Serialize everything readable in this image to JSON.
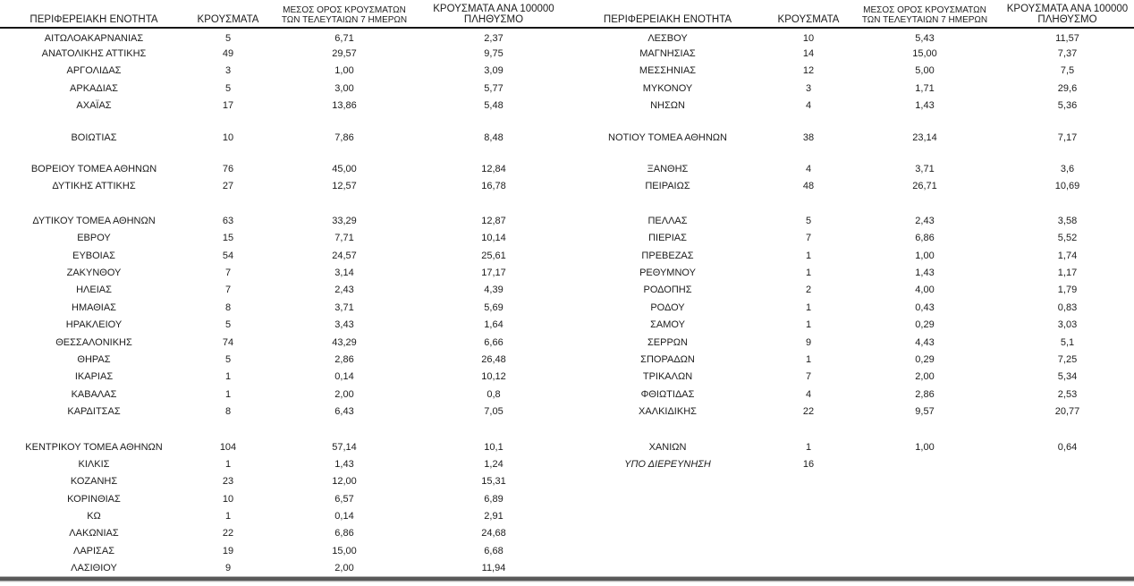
{
  "page": {
    "background_color": "#ffffff",
    "text_color": "#1c1c1c",
    "header_rule_color": "#161616",
    "bottom_bar_color": "#595959"
  },
  "table": {
    "column_headers": {
      "region": "ΠΕΡΙΦΕΡΕΙΑΚΗ ΕΝΟΤΗΤΑ",
      "cases": "ΚΡΟΥΣΜΑΤΑ",
      "avg_7day_line1": "ΜΕΣΟΣ ΟΡΟΣ ΚΡΟΥΣΜΑΤΩΝ",
      "avg_7day_line2": "ΤΩΝ ΤΕΛΕΥΤΑΙΩΝ 7 ΗΜΕΡΩΝ",
      "per_100k_line1": "ΚΡΟΥΣΜΑΤΑ ΑΝΑ 100000",
      "per_100k_line2": "ΠΛΗΘΥΣΜΟ"
    },
    "rows": [
      {
        "left": [
          "ΑΙΤΩΛΟΑΚΑΡΝΑΝΙΑΣ",
          "5",
          "6,71",
          "2,37"
        ],
        "right": [
          "ΛΕΣΒΟΥ",
          "10",
          "5,43",
          "11,57"
        ]
      },
      {
        "left": [
          "ΑΝΑΤΟΛΙΚΗΣ ΑΤΤΙΚΗΣ",
          "49",
          "29,57",
          "9,75"
        ],
        "right": [
          "ΜΑΓΝΗΣΙΑΣ",
          "14",
          "15,00",
          "7,37"
        ]
      },
      {
        "left": [
          "ΑΡΓΟΛΙΔΑΣ",
          "3",
          "1,00",
          "3,09"
        ],
        "right": [
          "ΜΕΣΣΗΝΙΑΣ",
          "12",
          "5,00",
          "7,5"
        ]
      },
      {
        "left": [
          "ΑΡΚΑΔΙΑΣ",
          "5",
          "3,00",
          "5,77"
        ],
        "right": [
          "ΜΥΚΟΝΟΥ",
          "3",
          "1,71",
          "29,6"
        ]
      },
      {
        "left": [
          "ΑΧΑΪΑΣ",
          "17",
          "13,86",
          "5,48"
        ],
        "right": [
          "ΝΗΣΩΝ",
          "4",
          "1,43",
          "5,36"
        ]
      },
      {
        "spacer": true,
        "height": 16
      },
      {
        "left": [
          "ΒΟΙΩΤΙΑΣ",
          "10",
          "7,86",
          "8,48"
        ],
        "right": [
          "ΝΟΤΙΟΥ ΤΟΜΕΑ ΑΘΗΝΩΝ",
          "38",
          "23,14",
          "7,17"
        ]
      },
      {
        "spacer": true,
        "height": 16
      },
      {
        "left": [
          "ΒΟΡΕΙΟΥ ΤΟΜΕΑ ΑΘΗΝΩΝ",
          "76",
          "45,00",
          "12,84"
        ],
        "right": [
          "ΞΑΝΘΗΣ",
          "4",
          "3,71",
          "3,6"
        ]
      },
      {
        "left": [
          "ΔΥΤΙΚΗΣ ΑΤΤΙΚΗΣ",
          "27",
          "12,57",
          "16,78"
        ],
        "right": [
          "ΠΕΙΡΑΙΩΣ",
          "48",
          "26,71",
          "10,69"
        ]
      },
      {
        "spacer": true,
        "height": 19
      },
      {
        "left": [
          "ΔΥΤΙΚΟΥ ΤΟΜΕΑ ΑΘΗΝΩΝ",
          "63",
          "33,29",
          "12,87"
        ],
        "right": [
          "ΠΕΛΛΑΣ",
          "5",
          "2,43",
          "3,58"
        ]
      },
      {
        "left": [
          "ΕΒΡΟΥ",
          "15",
          "7,71",
          "10,14"
        ],
        "right": [
          "ΠΙΕΡΙΑΣ",
          "7",
          "6,86",
          "5,52"
        ]
      },
      {
        "left": [
          "ΕΥΒΟΙΑΣ",
          "54",
          "24,57",
          "25,61"
        ],
        "right": [
          "ΠΡΕΒΕΖΑΣ",
          "1",
          "1,00",
          "1,74"
        ]
      },
      {
        "left": [
          "ΖΑΚΥΝΘΟΥ",
          "7",
          "3,14",
          "17,17"
        ],
        "right": [
          "ΡΕΘΥΜΝΟΥ",
          "1",
          "1,43",
          "1,17"
        ]
      },
      {
        "left": [
          "ΗΛΕΙΑΣ",
          "7",
          "2,43",
          "4,39"
        ],
        "right": [
          "ΡΟΔΟΠΗΣ",
          "2",
          "4,00",
          "1,79"
        ]
      },
      {
        "left": [
          "ΗΜΑΘΙΑΣ",
          "8",
          "3,71",
          "5,69"
        ],
        "right": [
          "ΡΟΔΟΥ",
          "1",
          "0,43",
          "0,83"
        ]
      },
      {
        "left": [
          "ΗΡΑΚΛΕΙΟΥ",
          "5",
          "3,43",
          "1,64"
        ],
        "right": [
          "ΣΑΜΟΥ",
          "1",
          "0,29",
          "3,03"
        ]
      },
      {
        "left": [
          "ΘΕΣΣΑΛΟΝΙΚΗΣ",
          "74",
          "43,29",
          "6,66"
        ],
        "right": [
          "ΣΕΡΡΩΝ",
          "9",
          "4,43",
          "5,1"
        ]
      },
      {
        "left": [
          "ΘΗΡΑΣ",
          "5",
          "2,86",
          "26,48"
        ],
        "right": [
          "ΣΠΟΡΑΔΩΝ",
          "1",
          "0,29",
          "7,25"
        ]
      },
      {
        "left": [
          "ΙΚΑΡΙΑΣ",
          "1",
          "0,14",
          "10,12"
        ],
        "right": [
          "ΤΡΙΚΑΛΩΝ",
          "7",
          "2,00",
          "5,34"
        ]
      },
      {
        "left": [
          "ΚΑΒΑΛΑΣ",
          "1",
          "2,00",
          "0,8"
        ],
        "right": [
          "ΦΘΙΩΤΙΔΑΣ",
          "4",
          "2,86",
          "2,53"
        ]
      },
      {
        "left": [
          "ΚΑΡΔΙΤΣΑΣ",
          "8",
          "6,43",
          "7,05"
        ],
        "right": [
          "ΧΑΛΚΙΔΙΚΗΣ",
          "22",
          "9,57",
          "20,77"
        ]
      },
      {
        "spacer": true,
        "height": 20
      },
      {
        "left": [
          "ΚΕΝΤΡΙΚΟΥ ΤΟΜΕΑ ΑΘΗΝΩΝ",
          "104",
          "57,14",
          "10,1"
        ],
        "right": [
          "ΧΑΝΙΩΝ",
          "1",
          "1,00",
          "0,64"
        ]
      },
      {
        "left": [
          "ΚΙΛΚΙΣ",
          "1",
          "1,43",
          "1,24"
        ],
        "right": [
          "ΥΠΟ ΔΙΕΡΕΥΝΗΣΗ",
          "16",
          "",
          ""
        ],
        "right_region_italic": true
      },
      {
        "left": [
          "ΚΟΖΑΝΗΣ",
          "23",
          "12,00",
          "15,31"
        ],
        "right": null
      },
      {
        "left": [
          "ΚΟΡΙΝΘΙΑΣ",
          "10",
          "6,57",
          "6,89"
        ],
        "right": null
      },
      {
        "left": [
          "ΚΩ",
          "1",
          "0,14",
          "2,91"
        ],
        "right": null
      },
      {
        "left": [
          "ΛΑΚΩΝΙΑΣ",
          "22",
          "6,86",
          "24,68"
        ],
        "right": null
      },
      {
        "left": [
          "ΛΑΡΙΣΑΣ",
          "19",
          "15,00",
          "6,68"
        ],
        "right": null
      },
      {
        "left": [
          "ΛΑΣΙΘΙΟΥ",
          "9",
          "2,00",
          "11,94"
        ],
        "right": null
      }
    ]
  }
}
